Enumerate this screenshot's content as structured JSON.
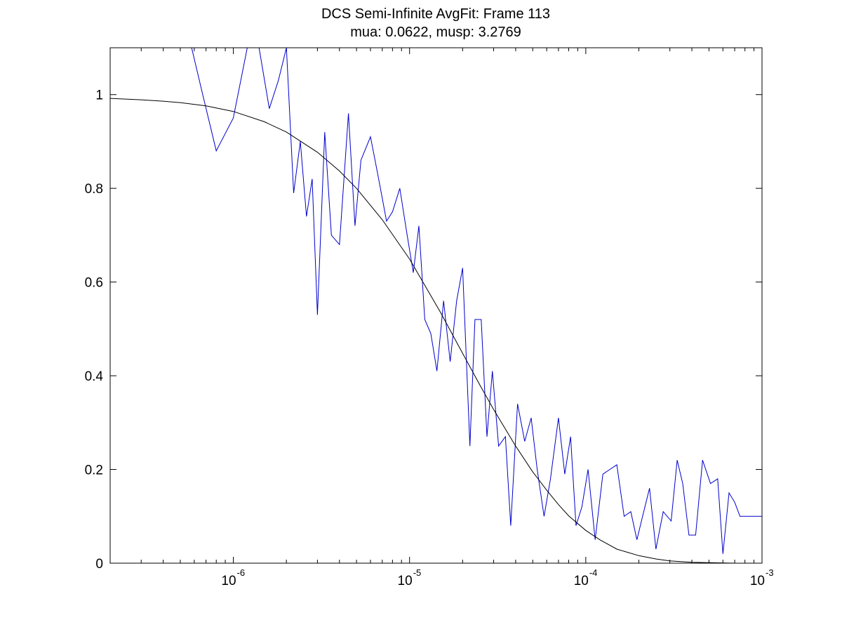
{
  "chart_data": {
    "type": "line",
    "title": "DCS Semi-Infinite AvgFit: Frame 113",
    "subtitle": "mua: 0.0622, musp: 3.2769",
    "xlabel": "",
    "ylabel": "",
    "xscale": "log",
    "xlim": [
      2e-07,
      0.001
    ],
    "ylim": [
      0,
      1.1
    ],
    "grid": false,
    "x_ticks": [
      {
        "value": 1e-06,
        "base": "10",
        "exp": "-6"
      },
      {
        "value": 1e-05,
        "base": "10",
        "exp": "-5"
      },
      {
        "value": 0.0001,
        "base": "10",
        "exp": "-4"
      },
      {
        "value": 0.001,
        "base": "10",
        "exp": "-3"
      }
    ],
    "y_ticks": [
      {
        "value": 0,
        "label": "0"
      },
      {
        "value": 0.2,
        "label": "0.2"
      },
      {
        "value": 0.4,
        "label": "0.4"
      },
      {
        "value": 0.6,
        "label": "0.6"
      },
      {
        "value": 0.8,
        "label": "0.8"
      },
      {
        "value": 1.0,
        "label": "1"
      }
    ],
    "series": [
      {
        "color": "#0000cc",
        "x": [
          5.8e-07,
          6.7e-07,
          8e-07,
          1e-06,
          1.2e-06,
          1.4e-06,
          1.6e-06,
          1.8e-06,
          2e-06,
          2.2e-06,
          2.4e-06,
          2.6e-06,
          2.8e-06,
          3e-06,
          3.3e-06,
          3.6e-06,
          4e-06,
          4.5e-06,
          4.9e-06,
          5.3e-06,
          6e-06,
          6.6e-06,
          7.4e-06,
          8e-06,
          8.8e-06,
          9.6e-06,
          1.05e-05,
          1.13e-05,
          1.22e-05,
          1.32e-05,
          1.43e-05,
          1.56e-05,
          1.7e-05,
          1.85e-05,
          2e-05,
          2.2e-05,
          2.35e-05,
          2.55e-05,
          2.75e-05,
          2.95e-05,
          3.2e-05,
          3.5e-05,
          3.75e-05,
          4.1e-05,
          4.5e-05,
          4.9e-05,
          5.3e-05,
          5.8e-05,
          6.3e-05,
          7e-05,
          7.6e-05,
          8.2e-05,
          8.8e-05,
          9.5e-05,
          0.000103,
          0.000113,
          0.000125,
          0.000137,
          0.00015,
          0.000165,
          0.00018,
          0.000195,
          0.00021,
          0.00023,
          0.00025,
          0.000275,
          0.000305,
          0.00033,
          0.000355,
          0.000385,
          0.00042,
          0.00046,
          0.00051,
          0.00056,
          0.0006,
          0.00065,
          0.0007,
          0.00075,
          0.0008,
          0.00085,
          0.0009,
          0.001
        ],
        "y": [
          1.1,
          1.0,
          0.88,
          0.95,
          1.1,
          1.1,
          0.97,
          1.03,
          1.1,
          0.79,
          0.9,
          0.74,
          0.82,
          0.53,
          0.92,
          0.7,
          0.68,
          0.96,
          0.72,
          0.86,
          0.91,
          0.83,
          0.73,
          0.75,
          0.8,
          0.71,
          0.62,
          0.72,
          0.52,
          0.49,
          0.41,
          0.56,
          0.43,
          0.56,
          0.63,
          0.25,
          0.52,
          0.52,
          0.27,
          0.41,
          0.25,
          0.27,
          0.08,
          0.34,
          0.26,
          0.31,
          0.2,
          0.1,
          0.18,
          0.31,
          0.19,
          0.27,
          0.08,
          0.12,
          0.2,
          0.05,
          0.19,
          0.2,
          0.21,
          0.1,
          0.11,
          0.05,
          0.1,
          0.16,
          0.03,
          0.11,
          0.09,
          0.22,
          0.17,
          0.06,
          0.06,
          0.22,
          0.17,
          0.18,
          0.02,
          0.15,
          0.13,
          0.1,
          0.1,
          0.1,
          0.1,
          0.1
        ]
      },
      {
        "color": "#000000",
        "x": [
          2e-07,
          3e-07,
          4e-07,
          5e-07,
          7e-07,
          1e-06,
          1.5e-06,
          2e-06,
          3e-06,
          4e-06,
          5e-06,
          7e-06,
          1e-05,
          1.5e-05,
          2e-05,
          2.5e-05,
          3e-05,
          4e-05,
          5e-05,
          6e-05,
          7e-05,
          8e-05,
          0.0001,
          0.00012,
          0.00015,
          0.0002,
          0.00025,
          0.0003,
          0.0004,
          0.0005,
          0.0007,
          0.001
        ],
        "y": [
          0.992,
          0.989,
          0.986,
          0.983,
          0.976,
          0.964,
          0.942,
          0.92,
          0.877,
          0.837,
          0.8,
          0.733,
          0.649,
          0.535,
          0.448,
          0.381,
          0.328,
          0.25,
          0.195,
          0.156,
          0.125,
          0.101,
          0.07,
          0.05,
          0.03,
          0.016,
          0.009,
          0.005,
          0.002,
          0.001,
          0.0,
          0.0
        ]
      }
    ]
  }
}
